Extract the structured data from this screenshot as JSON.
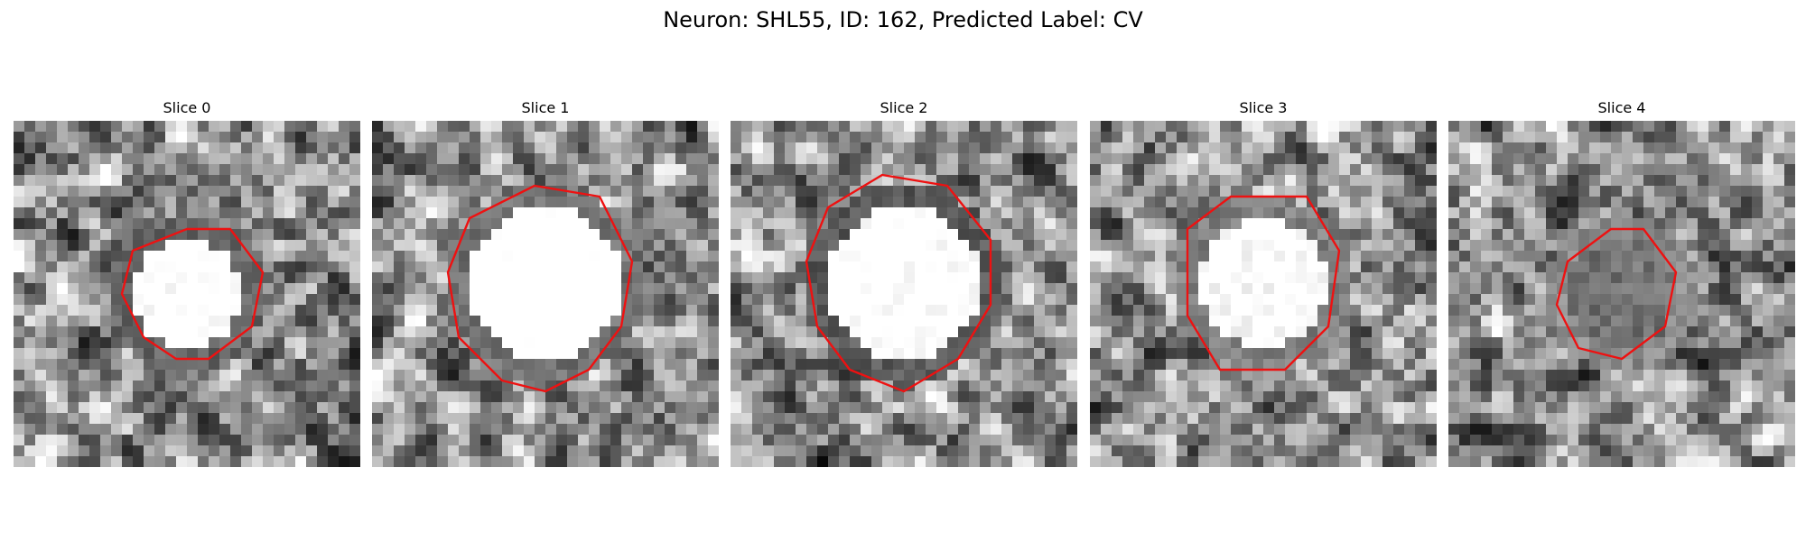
{
  "figure": {
    "title": "Neuron: SHL55, ID: 162, Predicted Label: CV"
  },
  "panels": [
    {
      "title": "Slice 0",
      "contour_polygon": [
        [
          16,
          10
        ],
        [
          11,
          12
        ],
        [
          10,
          16
        ],
        [
          12,
          20
        ],
        [
          15,
          22
        ],
        [
          18,
          22
        ],
        [
          22,
          19
        ],
        [
          23,
          14
        ],
        [
          20,
          10
        ]
      ],
      "spot": {
        "cx": 16,
        "cy": 16,
        "r": 5,
        "inner": 0.85,
        "ring": 0.2
      }
    },
    {
      "title": "Slice 1",
      "contour_polygon": [
        [
          15,
          6
        ],
        [
          9,
          9
        ],
        [
          7,
          14
        ],
        [
          8,
          20
        ],
        [
          12,
          24
        ],
        [
          16,
          25
        ],
        [
          20,
          23
        ],
        [
          23,
          19
        ],
        [
          24,
          13
        ],
        [
          21,
          7
        ]
      ],
      "spot": {
        "cx": 16,
        "cy": 15,
        "r": 7,
        "inner": 0.9,
        "ring": 0.25
      }
    },
    {
      "title": "Slice 2",
      "contour_polygon": [
        [
          14,
          5
        ],
        [
          9,
          8
        ],
        [
          7,
          13
        ],
        [
          8,
          19
        ],
        [
          11,
          23
        ],
        [
          16,
          25
        ],
        [
          21,
          22
        ],
        [
          24,
          17
        ],
        [
          24,
          11
        ],
        [
          20,
          6
        ]
      ],
      "spot": {
        "cx": 16,
        "cy": 15,
        "r": 7,
        "inner": 0.85,
        "ring": 0.15
      }
    },
    {
      "title": "Slice 3",
      "contour_polygon": [
        [
          13,
          7
        ],
        [
          9,
          10
        ],
        [
          9,
          18
        ],
        [
          12,
          23
        ],
        [
          18,
          23
        ],
        [
          22,
          19
        ],
        [
          23,
          12
        ],
        [
          20,
          7
        ]
      ],
      "spot": {
        "cx": 16,
        "cy": 15,
        "r": 6,
        "inner": 0.82,
        "ring": 0.3
      }
    },
    {
      "title": "Slice 4",
      "contour_polygon": [
        [
          15,
          10
        ],
        [
          11,
          13
        ],
        [
          10,
          17
        ],
        [
          12,
          21
        ],
        [
          16,
          22
        ],
        [
          20,
          19
        ],
        [
          21,
          14
        ],
        [
          18,
          10
        ]
      ],
      "spot": {
        "cx": 16,
        "cy": 16,
        "r": 5,
        "inner": 0.25,
        "ring": 0.35
      }
    }
  ],
  "style": {
    "contour_color": "#ee1111",
    "colormap": "gray",
    "grid_size": 32
  }
}
